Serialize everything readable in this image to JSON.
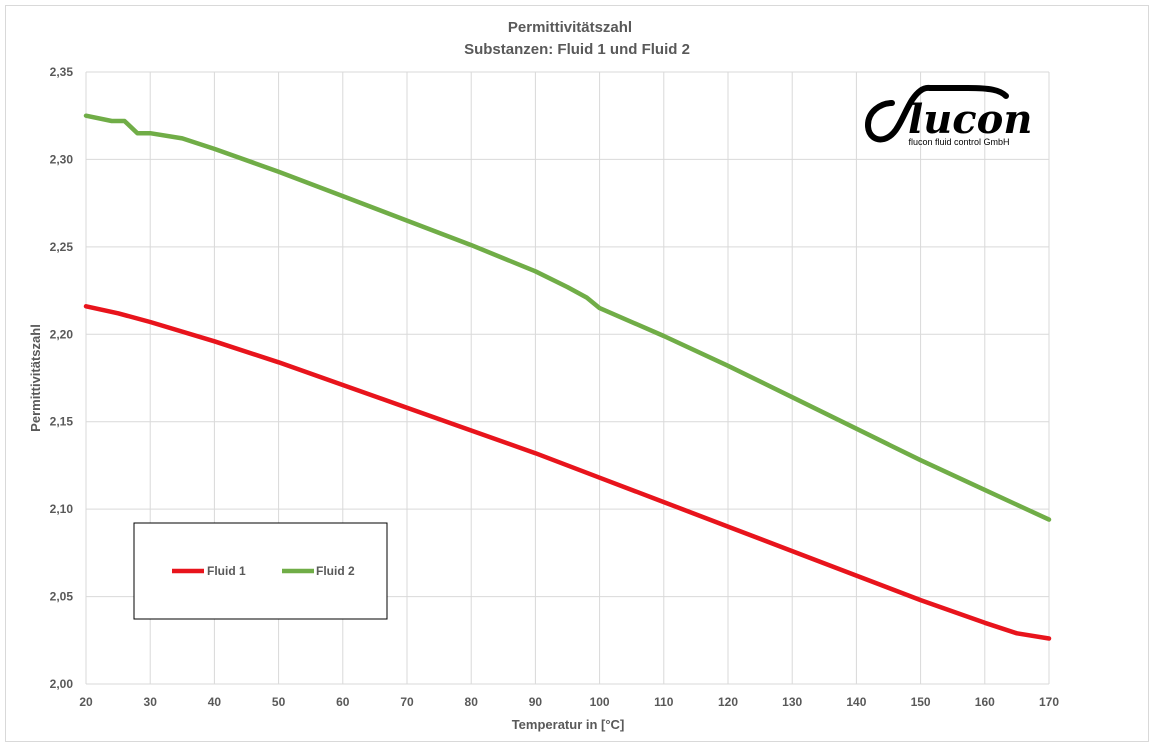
{
  "chart_data": {
    "type": "line",
    "title": "Permittivitätszahl",
    "subtitle": "Substanzen: Fluid 1 und Fluid 2",
    "xlabel": "Temperatur in [°C]",
    "ylabel": "Permittivitätszahl",
    "xlim": [
      20,
      170
    ],
    "ylim": [
      2.0,
      2.35
    ],
    "x_ticks": [
      20,
      30,
      40,
      50,
      60,
      70,
      80,
      90,
      100,
      110,
      120,
      130,
      140,
      150,
      160,
      170
    ],
    "y_ticks": [
      2.0,
      2.05,
      2.1,
      2.15,
      2.2,
      2.25,
      2.3,
      2.35
    ],
    "y_tick_labels": [
      "2,00",
      "2,05",
      "2,10",
      "2,15",
      "2,20",
      "2,25",
      "2,30",
      "2,35"
    ],
    "x_tick_labels": [
      "20",
      "30",
      "40",
      "50",
      "60",
      "70",
      "80",
      "90",
      "100",
      "110",
      "120",
      "130",
      "140",
      "150",
      "160",
      "170"
    ],
    "grid": true,
    "legend_position": "bottom-left",
    "series": [
      {
        "name": "Fluid 1",
        "color": "#e8141c",
        "x": [
          20,
          25,
          30,
          40,
          50,
          60,
          70,
          80,
          90,
          100,
          110,
          120,
          130,
          140,
          150,
          160,
          165,
          170
        ],
        "values": [
          2.216,
          2.212,
          2.207,
          2.196,
          2.184,
          2.171,
          2.158,
          2.145,
          2.132,
          2.118,
          2.104,
          2.09,
          2.076,
          2.062,
          2.048,
          2.035,
          2.029,
          2.026
        ]
      },
      {
        "name": "Fluid 2",
        "color": "#70ad47",
        "x": [
          20,
          24,
          26,
          28,
          30,
          35,
          40,
          50,
          60,
          70,
          80,
          90,
          95,
          98,
          100,
          110,
          120,
          130,
          140,
          150,
          160,
          170
        ],
        "values": [
          2.325,
          2.322,
          2.322,
          2.315,
          2.315,
          2.312,
          2.306,
          2.293,
          2.279,
          2.265,
          2.251,
          2.236,
          2.227,
          2.221,
          2.215,
          2.199,
          2.182,
          2.164,
          2.146,
          2.128,
          2.111,
          2.094
        ]
      }
    ]
  },
  "logo": {
    "word": "flucon",
    "tagline": "flucon fluid control GmbH"
  }
}
